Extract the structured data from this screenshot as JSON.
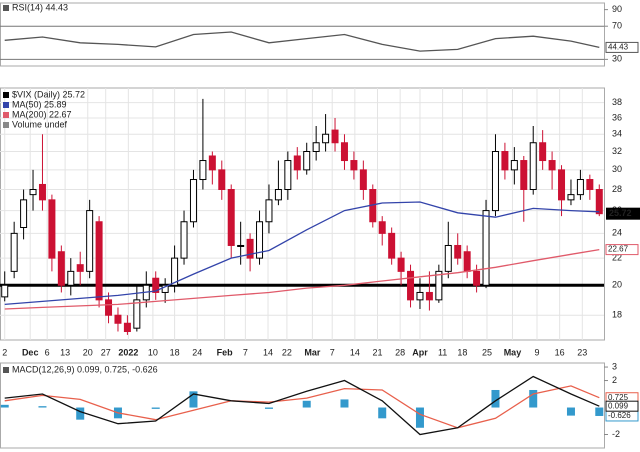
{
  "chart_data": [
    {
      "type": "line",
      "title": "RSI(14) 44.43",
      "xlim": [
        -0.5,
        63.5
      ],
      "ylim": [
        22,
        98
      ],
      "yticks": [
        30,
        70,
        90
      ],
      "reference_lines": [
        30,
        70
      ],
      "series": [
        {
          "color": "#555555",
          "x": [
            0,
            4,
            8,
            12,
            16,
            20,
            24,
            28,
            32,
            36,
            40,
            44,
            48,
            52,
            56,
            60,
            63
          ],
          "values": [
            53,
            57,
            50,
            48,
            45,
            60,
            63,
            50,
            55,
            60,
            48,
            40,
            42,
            55,
            58,
            52,
            44.43
          ],
          "value_label": "44.43"
        }
      ]
    },
    {
      "type": "candlestick",
      "title": "$VIX (Daily) 25.72",
      "legend_extra": "Volume undef",
      "log_scale": true,
      "grid": true,
      "xlim": [
        -0.5,
        63.5
      ],
      "ylim": [
        16.5,
        40
      ],
      "yticks": [
        18,
        20,
        22,
        24,
        26,
        28,
        30,
        32,
        34,
        36,
        38
      ],
      "xticks": [
        {
          "value": 0,
          "label": "2"
        },
        {
          "value": 2.7,
          "label": "Dec"
        },
        {
          "value": 4.5,
          "label": "6"
        },
        {
          "value": 6.4,
          "label": "13"
        },
        {
          "value": 8.8,
          "label": "20"
        },
        {
          "value": 10.7,
          "label": "27"
        },
        {
          "value": 13.1,
          "label": "2022"
        },
        {
          "value": 15.7,
          "label": "10"
        },
        {
          "value": 18,
          "label": "18"
        },
        {
          "value": 20.4,
          "label": "24"
        },
        {
          "value": 23.3,
          "label": "Feb"
        },
        {
          "value": 25.5,
          "label": "7"
        },
        {
          "value": 27.9,
          "label": "14"
        },
        {
          "value": 29.9,
          "label": "22"
        },
        {
          "value": 32.6,
          "label": "Mar"
        },
        {
          "value": 34.7,
          "label": "7"
        },
        {
          "value": 37.1,
          "label": "14"
        },
        {
          "value": 39.5,
          "label": "21"
        },
        {
          "value": 41.9,
          "label": "28"
        },
        {
          "value": 44,
          "label": "Apr"
        },
        {
          "value": 46.4,
          "label": "11"
        },
        {
          "value": 48.5,
          "label": "18"
        },
        {
          "value": 51.1,
          "label": "25"
        },
        {
          "value": 53.8,
          "label": "May"
        },
        {
          "value": 56.4,
          "label": "9"
        },
        {
          "value": 58.8,
          "label": "16"
        },
        {
          "value": 61.2,
          "label": "23"
        }
      ],
      "hline": 20,
      "up_color": "#000000",
      "down_color": "#cc1133",
      "close_label": "25.72",
      "x": [
        0,
        1,
        2,
        3,
        4,
        5,
        6,
        7,
        8,
        9,
        10,
        11,
        12,
        13,
        14,
        15,
        16,
        17,
        18,
        19,
        20,
        21,
        22,
        23,
        24,
        25,
        26,
        27,
        28,
        29,
        30,
        31,
        32,
        33,
        34,
        35,
        36,
        37,
        38,
        39,
        40,
        41,
        42,
        43,
        44,
        45,
        46,
        47,
        48,
        49,
        50,
        51,
        52,
        53,
        54,
        55,
        56,
        57,
        58,
        59,
        60,
        61,
        62,
        63
      ],
      "open": [
        19.2,
        21,
        24.5,
        27.5,
        28.5,
        27,
        22.5,
        20,
        21.5,
        21,
        25,
        19,
        18,
        17.5,
        17.2,
        19,
        20.5,
        19.5,
        20,
        22,
        25,
        29,
        31.5,
        30,
        28,
        23,
        23.5,
        22,
        25,
        27,
        28,
        31.5,
        30,
        32,
        33,
        34.5,
        33,
        31,
        30,
        28,
        25,
        24,
        22,
        21,
        19,
        19.5,
        19,
        21,
        23,
        22.5,
        21,
        20,
        26,
        32,
        30,
        31,
        28,
        33,
        31,
        30,
        27,
        27.5,
        29,
        28
      ],
      "high": [
        21,
        25,
        28,
        30,
        34,
        27.5,
        23,
        22,
        22.5,
        27,
        25.5,
        19.5,
        18.5,
        18,
        20,
        21,
        21,
        20.5,
        23,
        26,
        30,
        38.5,
        32,
        31,
        28.5,
        25,
        24,
        26,
        28.5,
        31,
        32,
        32.5,
        33,
        35,
        36.5,
        36,
        34,
        32,
        31,
        28.5,
        25.5,
        24.5,
        22.5,
        21.5,
        20.5,
        21,
        21.5,
        25,
        24,
        23,
        21.5,
        27,
        34,
        33,
        32.5,
        31.5,
        35,
        34.5,
        32,
        30.5,
        29,
        30,
        29.5,
        28.5
      ],
      "low": [
        18.9,
        20.5,
        23.5,
        26,
        26,
        21,
        19.5,
        19.3,
        20,
        20.5,
        18.5,
        17.5,
        17,
        16.8,
        17,
        18.5,
        19,
        18.8,
        19.5,
        21.5,
        24.5,
        28,
        28.5,
        27,
        22,
        21.5,
        21,
        21.5,
        24,
        26.5,
        27,
        29,
        29.5,
        31,
        32,
        32,
        30,
        29,
        27,
        24.5,
        23,
        21.5,
        20,
        18.5,
        18.4,
        18.3,
        18.8,
        20.5,
        21.5,
        20.5,
        19.5,
        19.8,
        25.5,
        29,
        28.5,
        25,
        27.5,
        30,
        28,
        25.5,
        26.5,
        27,
        27,
        25.5
      ],
      "close": [
        20,
        24,
        27,
        28,
        27,
        22,
        20,
        21,
        21,
        26,
        19,
        18,
        17.5,
        17,
        19,
        20,
        19.5,
        20,
        22,
        25,
        29,
        31,
        30,
        28,
        23,
        23,
        22,
        25,
        27,
        28,
        31,
        30,
        32,
        33,
        34,
        33,
        31,
        30,
        28,
        25,
        24,
        22,
        21,
        19,
        19.5,
        19,
        21,
        23,
        22,
        21,
        20,
        26,
        32,
        30,
        31,
        28,
        33,
        31,
        30,
        27,
        27.5,
        29,
        28,
        25.72
      ],
      "series": [
        {
          "name": "MA(50) 25.89",
          "color": "#3344aa",
          "x": [
            0,
            4,
            8,
            12,
            16,
            20,
            24,
            28,
            32,
            36,
            40,
            44,
            48,
            52,
            56,
            60,
            63
          ],
          "values": [
            18.7,
            18.9,
            19.1,
            19.3,
            19.6,
            20.8,
            22.0,
            22.6,
            24.3,
            26.0,
            26.7,
            26.8,
            25.8,
            25.4,
            26.2,
            26.0,
            25.89
          ]
        },
        {
          "name": "MA(200) 22.67",
          "color": "#e05a6a",
          "x": [
            0,
            4,
            8,
            12,
            16,
            20,
            24,
            28,
            32,
            36,
            40,
            44,
            48,
            52,
            56,
            60,
            63
          ],
          "values": [
            18.4,
            18.5,
            18.6,
            18.7,
            18.9,
            19.1,
            19.3,
            19.5,
            19.8,
            20.0,
            20.3,
            20.6,
            20.9,
            21.3,
            21.8,
            22.3,
            22.67
          ],
          "value_label": "22.67"
        }
      ]
    },
    {
      "type": "line",
      "title": "MACD(12,26,9) 0.099, 0.725, -0.626",
      "xlim": [
        -0.5,
        63.5
      ],
      "ylim": [
        -3,
        3.3
      ],
      "yticks": [
        -2,
        2,
        3
      ],
      "series": [
        {
          "color": "#3399cc",
          "style": "bar",
          "x": [
            0,
            4,
            8,
            12,
            16,
            20,
            24,
            28,
            32,
            36,
            40,
            44,
            48,
            52,
            56,
            60,
            63
          ],
          "values": [
            0.2,
            0.1,
            -0.9,
            -0.8,
            -0.1,
            1.2,
            0.0,
            -0.1,
            0.5,
            0.6,
            -0.8,
            -1.5,
            0.0,
            1.3,
            1.3,
            -0.6,
            -0.626
          ],
          "value_label": "-0.626"
        },
        {
          "color": "#e8604c",
          "x": [
            0,
            4,
            8,
            12,
            16,
            20,
            24,
            28,
            32,
            36,
            40,
            44,
            48,
            52,
            56,
            60,
            63
          ],
          "values": [
            0.5,
            0.9,
            0.6,
            -0.4,
            -0.9,
            -0.2,
            0.5,
            0.4,
            0.7,
            1.4,
            1.3,
            -0.5,
            -1.5,
            -0.8,
            1.0,
            1.6,
            0.725
          ],
          "value_label": "0.725"
        },
        {
          "color": "#111111",
          "x": [
            0,
            4,
            8,
            12,
            16,
            20,
            24,
            28,
            32,
            36,
            40,
            44,
            48,
            52,
            56,
            60,
            63
          ],
          "values": [
            0.7,
            1.0,
            -0.3,
            -1.2,
            -1.0,
            1.0,
            0.5,
            0.3,
            1.2,
            2.0,
            0.5,
            -2.0,
            -1.5,
            0.5,
            2.3,
            1.0,
            0.099
          ],
          "value_label": "0.099"
        }
      ]
    }
  ]
}
